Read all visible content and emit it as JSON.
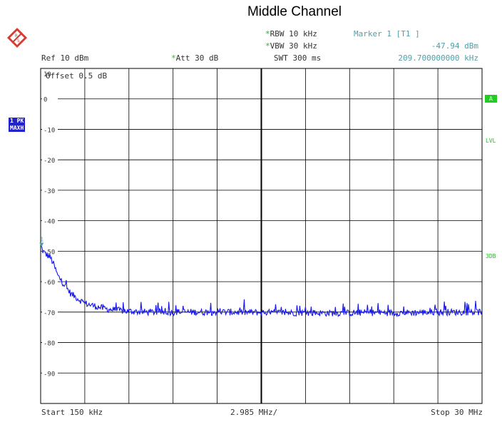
{
  "header": {
    "title": "Middle Channel",
    "ref": "Ref  10 dBm",
    "att": "Att  30 dB",
    "rbw": "RBW 10 kHz",
    "vbw": "VBW 30 kHz",
    "swt": "SWT 300 ms",
    "marker_label": "Marker 1 [T1 ]",
    "marker_level": "-47.94 dBm",
    "marker_freq": "209.700000000 kHz",
    "offset": "Offset  0.5 dB"
  },
  "side": {
    "trace_badge_1": "1 PK",
    "trace_badge_2": "MAXH",
    "right_box": "A",
    "right_lvl": "LVL",
    "right_3db": "3DB"
  },
  "footer": {
    "start": "Start 150 kHz",
    "div": "2.985 MHz/",
    "stop": "Stop 30 MHz"
  },
  "colors": {
    "trace": "#1515ee",
    "grid": "#000000",
    "accent_green": "#22cc22",
    "marker_teal": "#4f9fa7"
  },
  "chart_data": {
    "type": "line",
    "xlabel": "",
    "ylabel": "",
    "xlim": [
      0.15,
      30.0
    ],
    "ylim": [
      -100,
      10
    ],
    "y_ticks": [
      10,
      0,
      -10,
      -20,
      -30,
      -40,
      -50,
      -60,
      -70,
      -80,
      -90
    ],
    "y_tick_labels": [
      "10",
      "0",
      "-10",
      "-20",
      "-30",
      "-40",
      "-50",
      "-60",
      "-70",
      "-80",
      "-90"
    ],
    "grid": true,
    "x_divisions": 10,
    "marker": {
      "name": "1",
      "x": 0.2097,
      "y": -47.94
    },
    "series": [
      {
        "x": [
          0.15,
          0.3,
          0.5,
          0.8,
          1.0,
          1.3,
          1.6,
          1.9,
          2.2,
          2.5,
          2.8,
          3.1,
          3.4,
          3.8,
          4.2,
          4.6,
          5.0,
          5.5,
          6.0,
          6.5,
          7.0,
          7.5,
          8.0,
          8.5,
          9.0,
          10.0,
          11.0,
          12.0,
          13.0,
          14.0,
          15.0,
          16.0,
          17.0,
          18.0,
          19.0,
          20.0,
          21.0,
          22.0,
          23.0,
          24.0,
          25.0,
          26.0,
          27.0,
          28.0,
          29.0,
          30.0
        ],
        "y": [
          -48,
          -50,
          -51,
          -52,
          -54,
          -58,
          -60,
          -62,
          -64,
          -65,
          -66,
          -67,
          -67.5,
          -68,
          -68.5,
          -69,
          -69.2,
          -69.5,
          -69.7,
          -69.8,
          -70,
          -70,
          -70,
          -70,
          -70,
          -70,
          -70,
          -70,
          -70,
          -70.1,
          -70.1,
          -70.2,
          -70.2,
          -70.2,
          -70.3,
          -70.3,
          -70.3,
          -70.2,
          -70.2,
          -70.2,
          -70.2,
          -70.1,
          -70.1,
          -70,
          -70,
          -70
        ]
      }
    ]
  }
}
